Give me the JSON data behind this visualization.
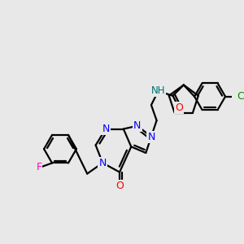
{
  "background_color": "#e8e8e8",
  "atom_colors": {
    "N": "#0000ff",
    "O": "#ff0000",
    "F": "#ff00cc",
    "Cl": "#008800",
    "C": "#000000",
    "H": "#007070"
  },
  "figsize": [
    3.0,
    3.0
  ],
  "dpi": 100
}
